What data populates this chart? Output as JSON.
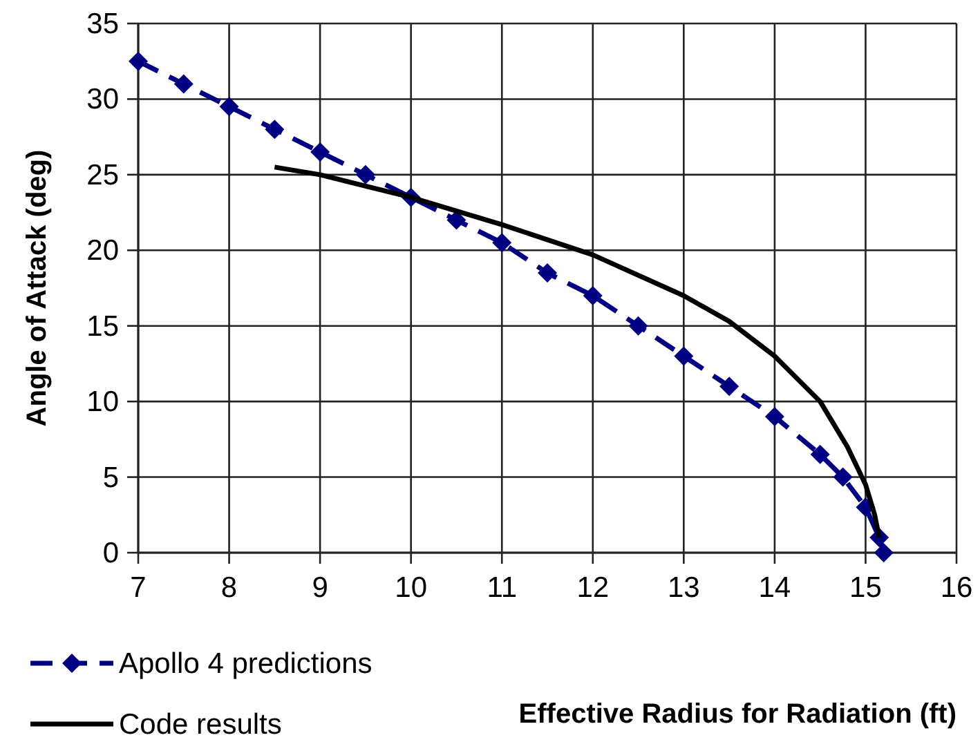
{
  "chart_data": {
    "type": "line",
    "xlabel": "Effective Radius for Radiation (ft)",
    "ylabel": "Angle of Attack (deg)",
    "xlim": [
      7,
      16
    ],
    "xticks": [
      7,
      8,
      9,
      10,
      11,
      12,
      13,
      14,
      15,
      16
    ],
    "ylim": [
      0,
      35
    ],
    "yticks": [
      0,
      5,
      10,
      15,
      20,
      25,
      30,
      35
    ],
    "grid": true,
    "legend": "bottom left",
    "series": [
      {
        "name": "Apollo 4 predictions",
        "color": "#000080",
        "marker": "diamond",
        "line_style": "dashed",
        "x": [
          7,
          7.5,
          8,
          8.5,
          9,
          9.5,
          10,
          10.5,
          11,
          11.5,
          12,
          12.5,
          13,
          13.5,
          14,
          14.5,
          14.75,
          15,
          15.15,
          15.2
        ],
        "values": [
          32.5,
          31,
          29.5,
          28,
          26.5,
          25,
          23.5,
          22,
          20.5,
          18.5,
          17,
          15,
          13,
          11,
          9,
          6.5,
          5,
          3,
          1,
          0
        ]
      },
      {
        "name": "Code results",
        "color": "#000000",
        "marker": "none",
        "line_style": "solid",
        "x": [
          8.5,
          9,
          10,
          11,
          12,
          13,
          13.5,
          14,
          14.5,
          14.8,
          15,
          15.1,
          15.15
        ],
        "values": [
          25.5,
          25,
          23.5,
          21.7,
          19.7,
          17,
          15.3,
          13,
          10,
          7,
          4.5,
          2.5,
          1
        ]
      }
    ]
  }
}
